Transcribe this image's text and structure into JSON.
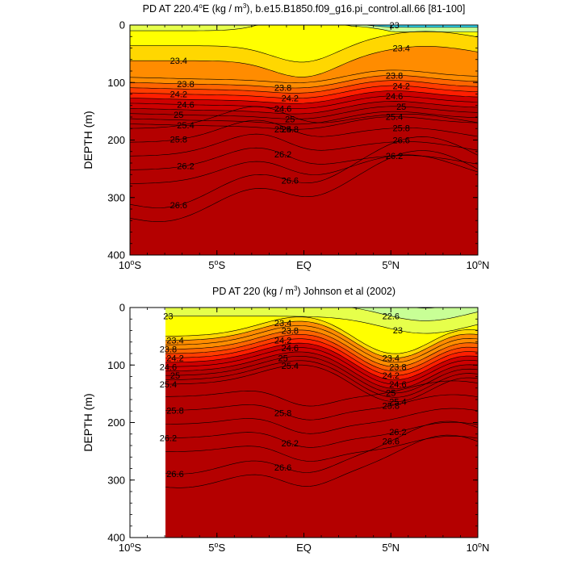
{
  "colors": {
    "scale": [
      "#ff00ff",
      "#b400ff",
      "#6e00ff",
      "#2d00ff",
      "#0000ff",
      "#0032ff",
      "#0064ff",
      "#0096ff",
      "#00b4ff",
      "#19d2ff",
      "#32e6ff",
      "#64f0ff",
      "#96fff0",
      "#c8ff96",
      "#e6ff4b",
      "#ffff00",
      "#ffd700",
      "#ffb400",
      "#ff8c00",
      "#ff6400",
      "#ff3c00",
      "#ff1e00",
      "#e60000",
      "#cd0000",
      "#b40000"
    ],
    "frame": "#000000",
    "contour": "#000000"
  },
  "charts": [
    {
      "title": "PD AT 220.4ºE (kg / m³), b.e15.B1850.f09_g16.pi_control.all.66 [81-100]",
      "title_parts": {
        "pre": "PD AT 220.4",
        "sup1": "o",
        "mid": "E (kg / m",
        "sup2": "3",
        "post": "), b.e15.B1850.f09_g16.pi_control.all.66 [81-100]"
      },
      "ylabel": "DEPTH (m)",
      "xticks": [
        {
          "main": "10",
          "sup": "o",
          "dir": "S"
        },
        {
          "main": "5",
          "sup": "o",
          "dir": "S"
        },
        {
          "main": "EQ",
          "sup": "",
          "dir": ""
        },
        {
          "main": "5",
          "sup": "o",
          "dir": "N"
        },
        {
          "main": "10",
          "sup": "o",
          "dir": "N"
        }
      ],
      "yticks": [
        "0",
        "100",
        "200",
        "300",
        "400"
      ],
      "contour_labels": [
        "23.4",
        "23.8",
        "24.2",
        "24.6",
        "25",
        "25.4",
        "25.8",
        "26.2",
        "26.6",
        "23.8",
        "24.2",
        "24.6",
        "25",
        "25.4",
        "25.8",
        "26.2",
        "26.6",
        "23",
        "23.4",
        "23.8",
        "24.2",
        "24.6",
        "25",
        "25.4",
        "25.8",
        "26.2",
        "26.6"
      ]
    },
    {
      "title": "PD AT 220 (kg / m³) Johnson et al (2002)",
      "title_parts": {
        "pre": "PD AT 220 (kg / m",
        "sup1": "",
        "mid": "",
        "sup2": "3",
        "post": ") Johnson et al (2002)"
      },
      "ylabel": "DEPTH (m)",
      "xticks": [
        {
          "main": "10",
          "sup": "o",
          "dir": "S"
        },
        {
          "main": "5",
          "sup": "o",
          "dir": "S"
        },
        {
          "main": "EQ",
          "sup": "",
          "dir": ""
        },
        {
          "main": "5",
          "sup": "o",
          "dir": "N"
        },
        {
          "main": "10",
          "sup": "o",
          "dir": "N"
        }
      ],
      "yticks": [
        "0",
        "100",
        "200",
        "300",
        "400"
      ],
      "contour_labels": [
        "23",
        "23.4",
        "23.8",
        "24.2",
        "24.6",
        "25",
        "25.4",
        "25.8",
        "26.2",
        "26.6",
        "23.4",
        "23.8",
        "24.2",
        "24.6",
        "25",
        "25.4",
        "25.8",
        "26.2",
        "26.6",
        "22.6",
        "23",
        "23.4",
        "23.8",
        "24.2",
        "24.6",
        "25",
        "25.4",
        "25.8",
        "26.2",
        "26.6"
      ]
    }
  ],
  "chart_data": [
    {
      "type": "contour",
      "title": "PD AT 220.4ºE (kg / m³), b.e15.B1850.f09_g16.pi_control.all.66 [81-100]",
      "xlabel": "",
      "ylabel": "DEPTH (m)",
      "x_range": [
        "10ºS",
        "10ºN"
      ],
      "y_range": [
        0,
        400
      ],
      "y_reversed": true,
      "field": "potential density",
      "contour_levels": [
        22.6,
        23,
        23.4,
        23.8,
        24.2,
        24.6,
        25,
        25.4,
        25.8,
        26.2,
        26.6
      ]
    },
    {
      "type": "contour",
      "title": "PD AT 220 (kg / m³) Johnson et al (2002)",
      "xlabel": "",
      "ylabel": "DEPTH (m)",
      "x_range": [
        "10ºS",
        "10ºN"
      ],
      "y_range": [
        0,
        400
      ],
      "y_reversed": true,
      "field": "potential density",
      "contour_levels": [
        22.6,
        23,
        23.4,
        23.8,
        24.2,
        24.6,
        25,
        25.4,
        25.8,
        26.2,
        26.6
      ]
    }
  ]
}
